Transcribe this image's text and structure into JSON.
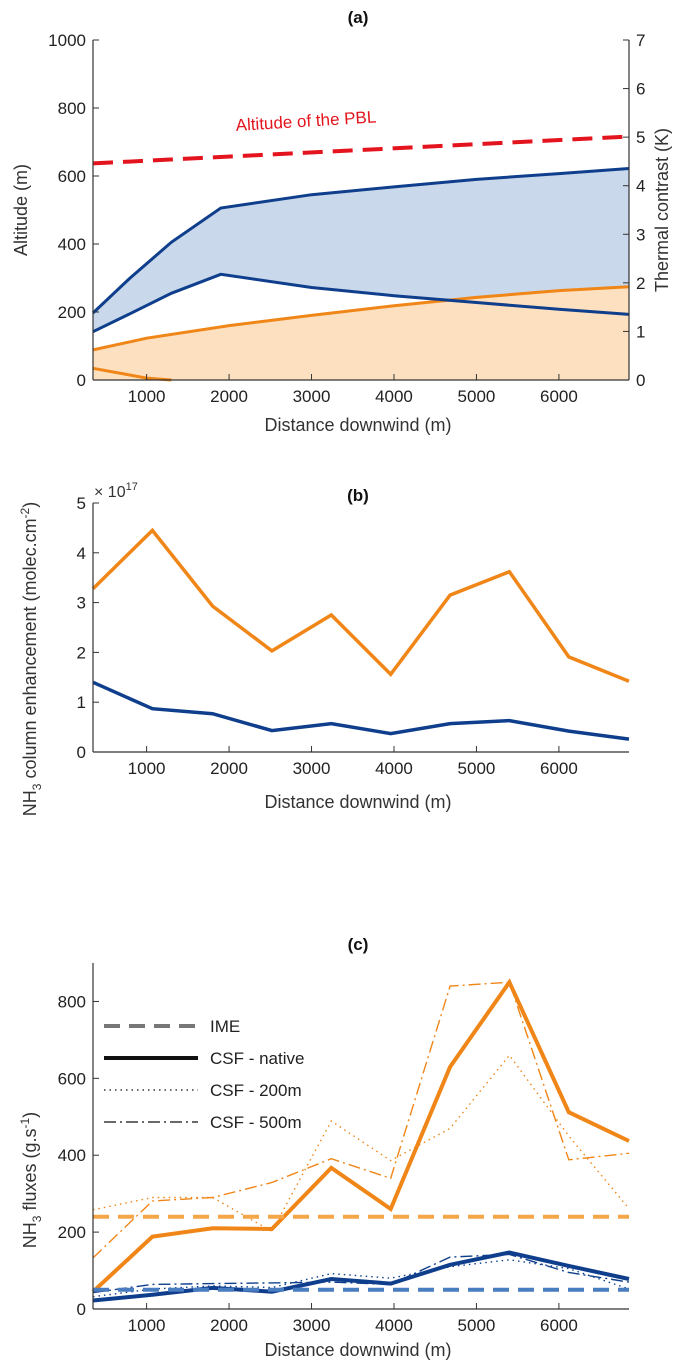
{
  "chart_data": [
    {
      "type": "line",
      "title": "(a)",
      "xlabel": "Distance downwind (m)",
      "ylabel": "Altitude (m)",
      "y2label": "Thermal contrast (K)",
      "xlim": [
        350,
        6850
      ],
      "ylim": [
        0,
        1000
      ],
      "y2lim": [
        0,
        7
      ],
      "xticks": [
        1000,
        2000,
        3000,
        4000,
        5000,
        6000
      ],
      "yticks": [
        0,
        200,
        400,
        600,
        800,
        1000
      ],
      "y2ticks": [
        0,
        1,
        2,
        3,
        4,
        5,
        6,
        7
      ],
      "annotation": "Altitude of the PBL",
      "colors": {
        "pbl": "#e3141d",
        "blue": "#0f3f8c",
        "blue_fill": "#c9d8ea",
        "orange": "#f08618",
        "orange_fill": "#fde0bf"
      },
      "series": [
        {
          "name": "Altitude of the PBL",
          "axis": "left",
          "style": "dashed",
          "x": [
            350,
            6850
          ],
          "values": [
            637,
            716
          ]
        },
        {
          "axis": "left",
          "role": "blue-upper",
          "x": [
            350,
            800,
            1300,
            1900,
            3000,
            4000,
            5000,
            6000,
            6850
          ],
          "values": [
            197,
            300,
            405,
            506,
            545,
            568,
            590,
            607,
            622
          ]
        },
        {
          "axis": "left",
          "role": "blue-lower",
          "x": [
            350,
            800,
            1300,
            1900,
            3000,
            4000,
            5000,
            6000,
            6850
          ],
          "values": [
            142,
            195,
            255,
            311,
            272,
            248,
            228,
            208,
            193
          ]
        },
        {
          "axis": "right",
          "role": "orange-upper",
          "x": [
            350,
            1000,
            2000,
            3000,
            4000,
            5000,
            6000,
            6850
          ],
          "values": [
            0.62,
            0.86,
            1.12,
            1.33,
            1.53,
            1.7,
            1.84,
            1.92
          ]
        },
        {
          "axis": "right",
          "role": "orange-lower",
          "x": [
            350,
            1000,
            1300
          ],
          "values": [
            0.24,
            0.04,
            0.0
          ]
        }
      ]
    },
    {
      "type": "line",
      "title": "(b)",
      "xlabel": "Distance downwind (m)",
      "ylabel_pre": "NH",
      "ylabel_sub": "3",
      "ylabel_post": " column enhancement (molec.cm",
      "ylabel_sup": "-2",
      "ylabel_end": ")",
      "exponent_base": "× 10",
      "exponent_power": "17",
      "xlim": [
        350,
        6850
      ],
      "ylim": [
        0,
        5
      ],
      "xticks": [
        1000,
        2000,
        3000,
        4000,
        5000,
        6000
      ],
      "yticks": [
        0,
        1,
        2,
        3,
        4,
        5
      ],
      "series": [
        {
          "role": "orange",
          "color": "#f08618",
          "x": [
            350,
            1070,
            1800,
            2520,
            3240,
            3960,
            4680,
            5400,
            6120,
            6850
          ],
          "values": [
            3.28,
            4.45,
            2.93,
            2.03,
            2.75,
            1.56,
            3.15,
            3.62,
            1.91,
            1.42
          ]
        },
        {
          "role": "blue",
          "color": "#0f3f8c",
          "x": [
            350,
            1070,
            1800,
            2520,
            3240,
            3960,
            4680,
            5400,
            6120,
            6850
          ],
          "values": [
            1.4,
            0.87,
            0.77,
            0.43,
            0.57,
            0.37,
            0.57,
            0.63,
            0.42,
            0.26
          ]
        }
      ]
    },
    {
      "type": "line",
      "title": "(c)",
      "xlabel": "Distance downwind (m)",
      "ylabel_pre": "NH",
      "ylabel_sub": "3",
      "ylabel_post": " fluxes (g.s",
      "ylabel_sup": "-1",
      "ylabel_end": ")",
      "xlim": [
        350,
        6850
      ],
      "ylim": [
        0,
        900
      ],
      "xticks": [
        1000,
        2000,
        3000,
        4000,
        5000,
        6000
      ],
      "yticks": [
        0,
        200,
        400,
        600,
        800
      ],
      "legend": [
        "IME",
        "CSF - native",
        "CSF - 200m",
        "CSF - 500m"
      ],
      "legend_placement": "top-left",
      "series": [
        {
          "role": "orange-native",
          "color": "#f08618",
          "style": "solid",
          "x": [
            350,
            1070,
            1800,
            2520,
            3240,
            3960,
            4680,
            5400,
            6120,
            6850
          ],
          "values": [
            45,
            188,
            210,
            208,
            367,
            260,
            630,
            850,
            512,
            437
          ]
        },
        {
          "role": "orange-500m",
          "color": "#f08618",
          "style": "dashdot",
          "x": [
            350,
            1070,
            1800,
            2520,
            3240,
            3960,
            4680,
            5400,
            6120,
            6850
          ],
          "values": [
            133,
            281,
            290,
            329,
            391,
            340,
            840,
            850,
            388,
            405
          ]
        },
        {
          "role": "orange-200m",
          "color": "#f08618",
          "style": "dotted",
          "x": [
            350,
            1070,
            1800,
            2520,
            3240,
            3960,
            4680,
            5400,
            6120,
            6850
          ],
          "values": [
            258,
            290,
            290,
            202,
            489,
            386,
            470,
            660,
            450,
            261
          ]
        },
        {
          "role": "orange-IME",
          "color": "#f5a649",
          "style": "dashed",
          "x": [
            350,
            6850
          ],
          "values": [
            240,
            240
          ]
        },
        {
          "role": "blue-native",
          "color": "#0f3f8c",
          "style": "solid",
          "x": [
            350,
            1070,
            1800,
            2520,
            3240,
            3960,
            4680,
            5400,
            6120,
            6850
          ],
          "values": [
            22,
            37,
            55,
            45,
            78,
            66,
            115,
            147,
            112,
            78
          ]
        },
        {
          "role": "blue-500m",
          "color": "#0f3f8c",
          "style": "dashdot",
          "x": [
            350,
            1070,
            1800,
            2520,
            3240,
            3960,
            4680,
            5400,
            6120,
            6850
          ],
          "values": [
            43,
            64,
            66,
            68,
            70,
            64,
            135,
            142,
            95,
            70
          ]
        },
        {
          "role": "blue-200m",
          "color": "#0f3f8c",
          "style": "dotted",
          "x": [
            350,
            1070,
            1800,
            2520,
            3240,
            3960,
            4680,
            5400,
            6120,
            6850
          ],
          "values": [
            32,
            52,
            60,
            56,
            92,
            80,
            110,
            128,
            105,
            52
          ]
        },
        {
          "role": "blue-IME",
          "color": "#4a7cc0",
          "style": "dashed",
          "x": [
            350,
            6850
          ],
          "values": [
            50,
            50
          ]
        }
      ]
    }
  ]
}
